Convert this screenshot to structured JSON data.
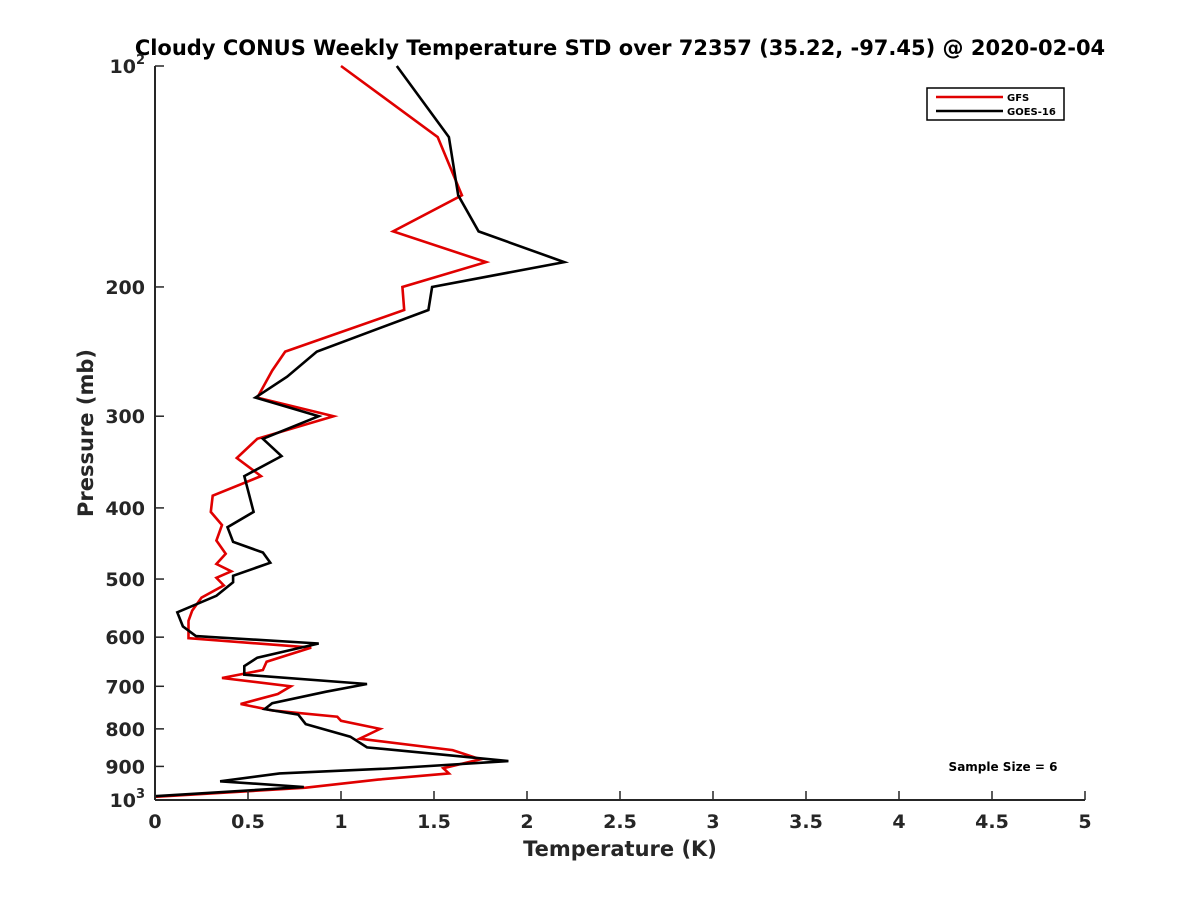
{
  "chart_data": {
    "type": "line",
    "title": "Cloudy CONUS Weekly Temperature STD over 72357 (35.22, -97.45) @ 2020-02-04",
    "xlabel": "Temperature (K)",
    "ylabel": "Pressure (mb)",
    "xlim": [
      0,
      5
    ],
    "ylim": [
      100,
      1000
    ],
    "yscale": "log",
    "y_reversed": true,
    "x_ticks": [
      0,
      0.5,
      1,
      1.5,
      2,
      2.5,
      3,
      3.5,
      4,
      4.5,
      5
    ],
    "x_tick_labels": [
      "0",
      "0.5",
      "1",
      "1.5",
      "2",
      "2.5",
      "3",
      "3.5",
      "4",
      "4.5",
      "5"
    ],
    "y_ticks": [
      100,
      200,
      300,
      400,
      500,
      600,
      700,
      800,
      900,
      1000
    ],
    "y_tick_labels": [
      {
        "base": "10",
        "exp": "2"
      },
      {
        "base": "200",
        "exp": ""
      },
      {
        "base": "300",
        "exp": ""
      },
      {
        "base": "400",
        "exp": ""
      },
      {
        "base": "500",
        "exp": ""
      },
      {
        "base": "600",
        "exp": ""
      },
      {
        "base": "700",
        "exp": ""
      },
      {
        "base": "800",
        "exp": ""
      },
      {
        "base": "900",
        "exp": ""
      },
      {
        "base": "10",
        "exp": "3"
      }
    ],
    "grid": false,
    "legend_position": "top-right",
    "annotation": "Sample Size = 6",
    "series": [
      {
        "name": "GFS",
        "color": "#e00000",
        "points": [
          [
            1.0,
            100
          ],
          [
            1.52,
            125
          ],
          [
            1.65,
            150
          ],
          [
            1.28,
            168
          ],
          [
            1.78,
            185
          ],
          [
            1.33,
            200
          ],
          [
            1.34,
            215
          ],
          [
            0.7,
            245
          ],
          [
            0.63,
            260
          ],
          [
            0.55,
            283
          ],
          [
            0.96,
            300
          ],
          [
            0.55,
            322
          ],
          [
            0.44,
            342
          ],
          [
            0.57,
            362
          ],
          [
            0.31,
            385
          ],
          [
            0.3,
            405
          ],
          [
            0.36,
            422
          ],
          [
            0.33,
            443
          ],
          [
            0.38,
            462
          ],
          [
            0.33,
            477
          ],
          [
            0.41,
            488
          ],
          [
            0.33,
            498
          ],
          [
            0.37,
            510
          ],
          [
            0.25,
            530
          ],
          [
            0.2,
            552
          ],
          [
            0.18,
            570
          ],
          [
            0.18,
            590
          ],
          [
            0.18,
            602
          ],
          [
            0.84,
            620
          ],
          [
            0.6,
            648
          ],
          [
            0.58,
            665
          ],
          [
            0.36,
            682
          ],
          [
            0.73,
            700
          ],
          [
            0.66,
            717
          ],
          [
            0.46,
            740
          ],
          [
            0.63,
            755
          ],
          [
            0.98,
            770
          ],
          [
            1.0,
            780
          ],
          [
            1.21,
            800
          ],
          [
            1.1,
            825
          ],
          [
            1.6,
            855
          ],
          [
            1.75,
            880
          ],
          [
            1.55,
            905
          ],
          [
            1.58,
            920
          ],
          [
            1.2,
            938
          ],
          [
            0.81,
            962
          ],
          [
            0.0,
            990
          ]
        ]
      },
      {
        "name": "GOES-16",
        "color": "#000000",
        "points": [
          [
            1.3,
            100
          ],
          [
            1.58,
            125
          ],
          [
            1.63,
            150
          ],
          [
            1.74,
            168
          ],
          [
            2.2,
            185
          ],
          [
            1.49,
            200
          ],
          [
            1.47,
            215
          ],
          [
            0.87,
            245
          ],
          [
            0.71,
            265
          ],
          [
            0.54,
            283
          ],
          [
            0.88,
            300
          ],
          [
            0.58,
            322
          ],
          [
            0.68,
            340
          ],
          [
            0.48,
            362
          ],
          [
            0.53,
            405
          ],
          [
            0.39,
            425
          ],
          [
            0.42,
            445
          ],
          [
            0.58,
            460
          ],
          [
            0.62,
            475
          ],
          [
            0.42,
            495
          ],
          [
            0.42,
            505
          ],
          [
            0.33,
            527
          ],
          [
            0.12,
            555
          ],
          [
            0.15,
            580
          ],
          [
            0.22,
            598
          ],
          [
            0.88,
            612
          ],
          [
            0.55,
            640
          ],
          [
            0.48,
            657
          ],
          [
            0.48,
            675
          ],
          [
            1.14,
            695
          ],
          [
            0.92,
            712
          ],
          [
            0.63,
            738
          ],
          [
            0.59,
            752
          ],
          [
            0.77,
            765
          ],
          [
            0.81,
            788
          ],
          [
            1.05,
            820
          ],
          [
            1.14,
            848
          ],
          [
            1.5,
            865
          ],
          [
            1.9,
            885
          ],
          [
            1.26,
            906
          ],
          [
            0.67,
            920
          ],
          [
            0.35,
            943
          ],
          [
            0.8,
            960
          ],
          [
            0.0,
            988
          ]
        ]
      }
    ]
  }
}
